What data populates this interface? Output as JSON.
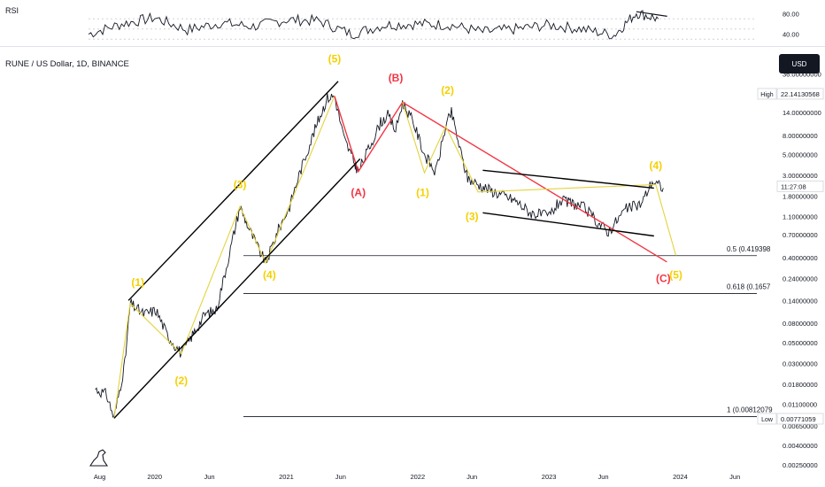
{
  "header": {
    "symbol": "RUNE / US Dollar, 1D, BINANCE",
    "currency": "USD",
    "rsi_title": "RSI"
  },
  "colors": {
    "background": "#ffffff",
    "price": "#131722",
    "impulse": "#e3d33c",
    "corrective": "#f23645",
    "channel": "#000000",
    "fib": "#131722",
    "label_yellow": "#f5d000",
    "label_red": "#f23645"
  },
  "chart_data": [
    {
      "type": "line",
      "name": "RSI",
      "title": "RSI",
      "y_ticks": [
        40.0,
        80.0
      ],
      "y_tick_labels": [
        "40.00",
        "80.00"
      ],
      "ylim": [
        20,
        100
      ],
      "levels": [
        30,
        50,
        70
      ],
      "series": [
        {
          "x": [
            "2019-07",
            "2019-10",
            "2020-01",
            "2020-04",
            "2020-07",
            "2020-10",
            "2021-01",
            "2021-04",
            "2021-07",
            "2021-10",
            "2022-01",
            "2022-04",
            "2022-07",
            "2022-10",
            "2023-01",
            "2023-04",
            "2023-07",
            "2023-09",
            "2023-11"
          ],
          "values": [
            40,
            60,
            72,
            48,
            62,
            55,
            68,
            66,
            40,
            58,
            60,
            58,
            44,
            50,
            58,
            50,
            38,
            82,
            70
          ]
        }
      ],
      "trendline": {
        "from": [
          "2023-09",
          84
        ],
        "to": [
          "2023-11",
          75
        ]
      }
    },
    {
      "type": "line",
      "title": "RUNE / US Dollar, 1D, BINANCE",
      "scale": "log",
      "ylim": [
        0.0018,
        60
      ],
      "y_tick_labels": [
        "36.00000000",
        "14.00000000",
        "8.00000000",
        "5.00000000",
        "3.00000000",
        "1.80000000",
        "1.10000000",
        "0.70000000",
        "0.40000000",
        "0.24000000",
        "0.14000000",
        "0.08000000",
        "0.05000000",
        "0.03000000",
        "0.01800000",
        "0.01100000",
        "0.00650000",
        "0.00400000",
        "0.00250000"
      ],
      "x_tick_labels": [
        "Aug",
        "2020",
        "Jun",
        "2021",
        "Jun",
        "2022",
        "Jun",
        "2023",
        "Jun",
        "2024",
        "Jun"
      ],
      "price_markers": [
        {
          "label": "High",
          "value": "22.14130568"
        },
        {
          "label": "",
          "value": "11:27:08"
        },
        {
          "label": "Low",
          "value": "0.00771059"
        }
      ],
      "series": [
        {
          "x": [
            "2019-07-20",
            "2019-08-20",
            "2019-09-10",
            "2019-10-10",
            "2019-10-25",
            "2019-12-01",
            "2020-01-05",
            "2020-02-05",
            "2020-03-15",
            "2020-04-15",
            "2020-05-20",
            "2020-06-20",
            "2020-07-15",
            "2020-08-25",
            "2020-09-20",
            "2020-10-15",
            "2020-11-05",
            "2020-12-10",
            "2021-01-10",
            "2021-02-05",
            "2021-03-10",
            "2021-04-05",
            "2021-04-25",
            "2021-05-15",
            "2021-06-10",
            "2021-07-10",
            "2021-07-20",
            "2021-08-20",
            "2021-09-20",
            "2021-10-10",
            "2021-11-01",
            "2021-11-20",
            "2021-12-20",
            "2022-01-20",
            "2022-02-20",
            "2022-03-20",
            "2022-04-05",
            "2022-05-05",
            "2022-05-20",
            "2022-06-18",
            "2022-08-01",
            "2022-09-01",
            "2022-10-01",
            "2022-11-10",
            "2022-12-31",
            "2023-02-01",
            "2023-03-10",
            "2023-04-10",
            "2023-05-10",
            "2023-06-15",
            "2023-08-01",
            "2023-09-15",
            "2023-10-15",
            "2023-11-15"
          ],
          "values": [
            0.016,
            0.014,
            0.0078,
            0.03,
            0.13,
            0.1,
            0.11,
            0.06,
            0.038,
            0.06,
            0.1,
            0.11,
            0.28,
            1.4,
            0.8,
            0.5,
            0.35,
            0.8,
            1.4,
            3.0,
            7.0,
            13.0,
            20.0,
            21.0,
            7.5,
            4.0,
            3.3,
            6.0,
            11.0,
            13.0,
            9.0,
            18.0,
            11.0,
            5.0,
            3.2,
            10.0,
            14.0,
            4.5,
            2.8,
            2.4,
            2.0,
            1.8,
            1.6,
            1.2,
            1.1,
            1.6,
            1.5,
            1.35,
            1.0,
            0.75,
            1.3,
            1.5,
            2.6,
            2.2
          ]
        }
      ],
      "elliott_labels": [
        {
          "text": "(1)",
          "x": "2019-11-15",
          "y": 0.2,
          "color": "yellow"
        },
        {
          "text": "(2)",
          "x": "2020-03-15",
          "y": 0.018,
          "color": "yellow"
        },
        {
          "text": "(3)",
          "x": "2020-08-25",
          "y": 2.2,
          "color": "yellow"
        },
        {
          "text": "(4)",
          "x": "2020-11-15",
          "y": 0.24,
          "color": "yellow"
        },
        {
          "text": "(5)",
          "x": "2021-05-15",
          "y": 48.0,
          "color": "yellow"
        },
        {
          "text": "(A)",
          "x": "2021-07-20",
          "y": 1.8,
          "color": "red"
        },
        {
          "text": "(B)",
          "x": "2021-11-01",
          "y": 30.0,
          "color": "red"
        },
        {
          "text": "(1)",
          "x": "2022-01-15",
          "y": 1.8,
          "color": "yellow"
        },
        {
          "text": "(2)",
          "x": "2022-03-25",
          "y": 22.0,
          "color": "yellow"
        },
        {
          "text": "(3)",
          "x": "2022-06-01",
          "y": 1.0,
          "color": "yellow"
        },
        {
          "text": "(4)",
          "x": "2023-10-25",
          "y": 3.5,
          "color": "yellow"
        },
        {
          "text": "(C)",
          "x": "2023-11-15",
          "y": 0.22,
          "color": "red"
        },
        {
          "text": "(5)",
          "x": "2023-12-20",
          "y": 0.24,
          "color": "yellow"
        }
      ],
      "fib_levels": [
        {
          "label": "0.5 (0.419398",
          "value": 0.419398
        },
        {
          "label": "0.618 (0.1657",
          "value": 0.1657
        },
        {
          "label": "1 (0.00812079",
          "value": 0.00812079
        }
      ]
    }
  ]
}
